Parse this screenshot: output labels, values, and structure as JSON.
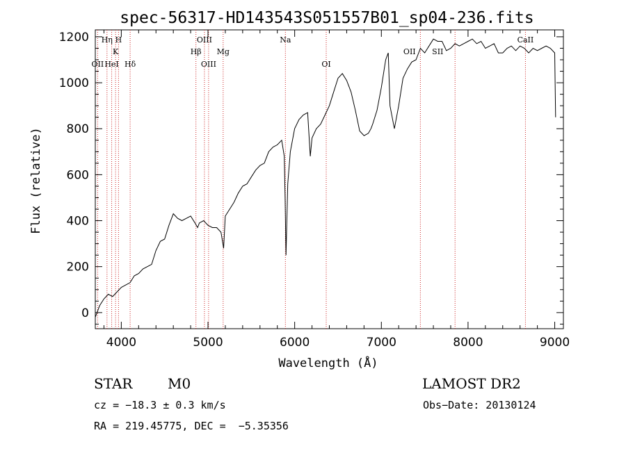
{
  "chart_data": {
    "type": "line",
    "title": "spec-56317-HD143543S051557B01_sp04-236.fits",
    "xlabel": "Wavelength (Å)",
    "ylabel": "Flux (relative)",
    "xlim": [
      3700,
      9100
    ],
    "ylim": [
      -70,
      1230
    ],
    "xticks": [
      4000,
      5000,
      6000,
      7000,
      8000,
      9000
    ],
    "yticks": [
      0,
      200,
      400,
      600,
      800,
      1000,
      1200
    ],
    "grid": false,
    "series": [
      {
        "x": [
          3700,
          3750,
          3800,
          3850,
          3900,
          3950,
          4000,
          4050,
          4100,
          4150,
          4200,
          4250,
          4300,
          4350,
          4400,
          4450,
          4500,
          4550,
          4600,
          4650,
          4700,
          4750,
          4800,
          4850,
          4880,
          4900,
          4950,
          5000,
          5050,
          5100,
          5150,
          5180,
          5200,
          5250,
          5300,
          5350,
          5400,
          5450,
          5500,
          5550,
          5600,
          5650,
          5700,
          5750,
          5800,
          5850,
          5880,
          5890,
          5900,
          5920,
          5950,
          6000,
          6050,
          6100,
          6150,
          6180,
          6200,
          6250,
          6300,
          6350,
          6400,
          6450,
          6500,
          6550,
          6600,
          6650,
          6700,
          6750,
          6800,
          6850,
          6880,
          6900,
          6950,
          7000,
          7050,
          7080,
          7100,
          7150,
          7200,
          7250,
          7300,
          7350,
          7400,
          7450,
          7500,
          7550,
          7600,
          7650,
          7700,
          7750,
          7800,
          7850,
          7900,
          7950,
          8000,
          8050,
          8100,
          8150,
          8200,
          8250,
          8300,
          8350,
          8400,
          8450,
          8500,
          8550,
          8600,
          8650,
          8700,
          8750,
          8800,
          8850,
          8900,
          8950,
          9000,
          9010
        ],
        "values": [
          -20,
          30,
          60,
          80,
          70,
          90,
          110,
          120,
          130,
          160,
          170,
          190,
          200,
          210,
          270,
          310,
          320,
          380,
          430,
          410,
          400,
          410,
          420,
          390,
          370,
          390,
          400,
          380,
          370,
          370,
          350,
          280,
          420,
          450,
          480,
          520,
          550,
          560,
          590,
          620,
          640,
          650,
          700,
          720,
          730,
          750,
          680,
          500,
          250,
          560,
          700,
          800,
          840,
          860,
          870,
          680,
          760,
          800,
          820,
          860,
          900,
          960,
          1020,
          1040,
          1010,
          960,
          880,
          790,
          770,
          780,
          800,
          820,
          880,
          980,
          1100,
          1130,
          900,
          800,
          900,
          1020,
          1060,
          1090,
          1100,
          1150,
          1130,
          1160,
          1190,
          1180,
          1180,
          1140,
          1150,
          1170,
          1160,
          1170,
          1180,
          1190,
          1170,
          1180,
          1150,
          1160,
          1170,
          1130,
          1130,
          1150,
          1160,
          1140,
          1160,
          1150,
          1130,
          1150,
          1140,
          1150,
          1160,
          1150,
          1130,
          850
        ]
      }
    ],
    "line_labels": [
      {
        "name": "OII",
        "x": 3727,
        "row": 3
      },
      {
        "name": "Hη",
        "x": 3835,
        "row": 1
      },
      {
        "name": "HeI",
        "x": 3889,
        "row": 3
      },
      {
        "name": "K",
        "x": 3934,
        "row": 2
      },
      {
        "name": "H",
        "x": 3968,
        "row": 1
      },
      {
        "name": "Hδ",
        "x": 4102,
        "row": 3
      },
      {
        "name": "Hβ",
        "x": 4861,
        "row": 2
      },
      {
        "name": "OIII",
        "x": 4959,
        "row": 1
      },
      {
        "name": "OIII",
        "x": 5007,
        "row": 3
      },
      {
        "name": "Mg",
        "x": 5175,
        "row": 2
      },
      {
        "name": "Na",
        "x": 5893,
        "row": 1
      },
      {
        "name": "OI",
        "x": 6364,
        "row": 3
      },
      {
        "name": "OII",
        "x": 7325,
        "row": 2
      },
      {
        "name": "SII",
        "x": 7650,
        "row": 2
      },
      {
        "name": "CaII",
        "x": 8662,
        "row": 1
      }
    ],
    "marker_lines_x": [
      3727,
      3835,
      3889,
      3934,
      3968,
      4102,
      4861,
      4959,
      5007,
      5175,
      5893,
      6364,
      7450,
      7850,
      8662
    ],
    "marker_color": "#cc2222"
  },
  "info": {
    "object_class": "STAR",
    "subclass": "M0",
    "survey": "LAMOST DR2",
    "cz": "cz = −18.3 ± 0.3 km/s",
    "obs_date": "Obs−Date: 20130124",
    "coords": "RA = 219.45775, DEC =  −5.35356"
  }
}
